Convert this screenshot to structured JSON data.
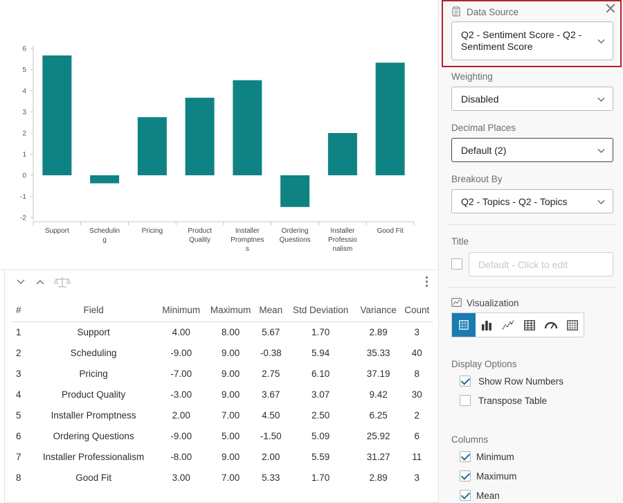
{
  "chart_data": {
    "type": "bar",
    "categories": [
      "Support",
      "Scheduling",
      "Pricing",
      "Product Quality",
      "Installer Promptness",
      "Ordering Questions",
      "Installer Professionalism",
      "Good Fit"
    ],
    "category_lines": [
      [
        "Support"
      ],
      [
        "Schedulin",
        "g"
      ],
      [
        "Pricing"
      ],
      [
        "Product",
        "Quality"
      ],
      [
        "Installer",
        "Promptnes",
        "s"
      ],
      [
        "Ordering",
        "Questions"
      ],
      [
        "Installer",
        "Professio",
        "nalism"
      ],
      [
        "Good Fit"
      ]
    ],
    "values": [
      5.67,
      -0.38,
      2.75,
      3.67,
      4.5,
      -1.5,
      2.0,
      5.33
    ],
    "yticks": [
      "6",
      "5",
      "4",
      "3",
      "2",
      "1",
      "0",
      "-1",
      "-2"
    ],
    "ylim": [
      -2,
      6
    ],
    "bar_color": "#0f8383"
  },
  "table": {
    "headers": [
      "#",
      "Field",
      "Minimum",
      "Maximum",
      "Mean",
      "Std Deviation",
      "Variance",
      "Count"
    ],
    "rows": [
      [
        "1",
        "Support",
        "4.00",
        "8.00",
        "5.67",
        "1.70",
        "2.89",
        "3"
      ],
      [
        "2",
        "Scheduling",
        "-9.00",
        "9.00",
        "-0.38",
        "5.94",
        "35.33",
        "40"
      ],
      [
        "3",
        "Pricing",
        "-7.00",
        "9.00",
        "2.75",
        "6.10",
        "37.19",
        "8"
      ],
      [
        "4",
        "Product Quality",
        "-3.00",
        "9.00",
        "3.67",
        "3.07",
        "9.42",
        "30"
      ],
      [
        "5",
        "Installer Promptness",
        "2.00",
        "7.00",
        "4.50",
        "2.50",
        "6.25",
        "2"
      ],
      [
        "6",
        "Ordering Questions",
        "-9.00",
        "5.00",
        "-1.50",
        "5.09",
        "25.92",
        "6"
      ],
      [
        "7",
        "Installer Professionalism",
        "-8.00",
        "9.00",
        "2.00",
        "5.59",
        "31.27",
        "11"
      ],
      [
        "8",
        "Good Fit",
        "3.00",
        "7.00",
        "5.33",
        "1.70",
        "2.89",
        "3"
      ]
    ]
  },
  "panel": {
    "data_source": {
      "label": "Data Source",
      "line1": "Q2 - Sentiment Score - Q2 -",
      "line2": "Sentiment Score"
    },
    "weighting": {
      "label": "Weighting",
      "value": "Disabled"
    },
    "decimal_places": {
      "label": "Decimal Places",
      "value": "Default (2)"
    },
    "breakout_by": {
      "label": "Breakout By",
      "value": "Q2 - Topics - Q2 - Topics"
    },
    "title": {
      "label": "Title",
      "placeholder": "Default - Click to edit"
    },
    "visualization": {
      "label": "Visualization"
    },
    "display_options": {
      "label": "Display Options",
      "show_row_numbers": "Show Row Numbers",
      "transpose_table": "Transpose Table"
    },
    "columns": {
      "label": "Columns",
      "minimum": "Minimum",
      "maximum": "Maximum",
      "mean": "Mean"
    }
  },
  "colors": {
    "accent_red": "#b5202d",
    "active_blue": "#1a7bb0",
    "teal": "#0f8383"
  }
}
